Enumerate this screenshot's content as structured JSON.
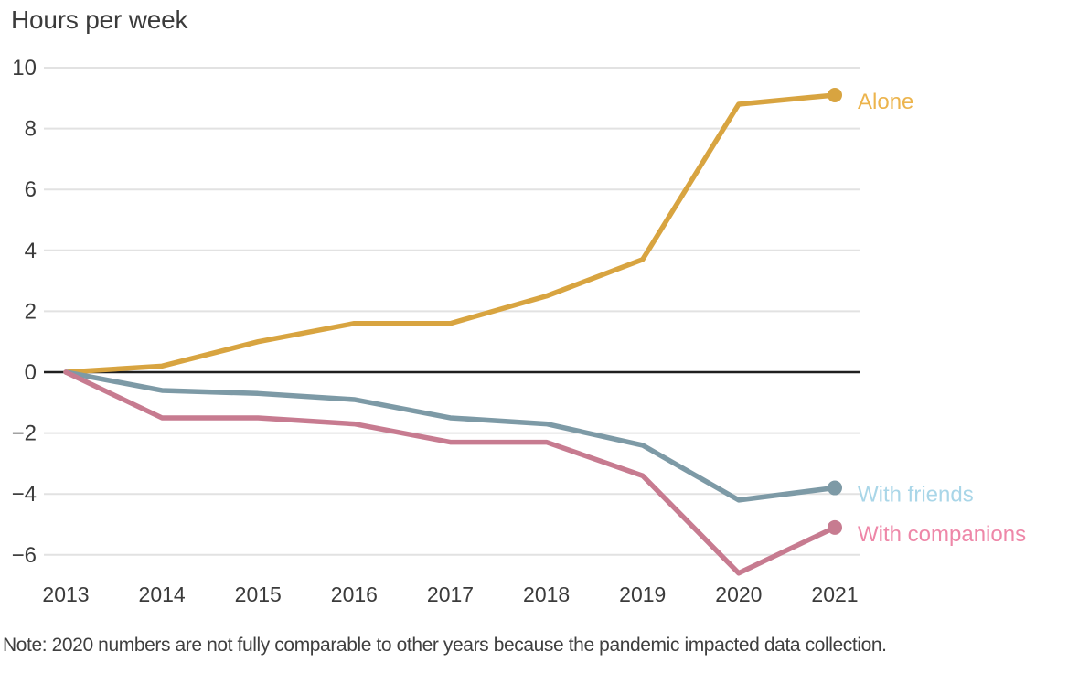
{
  "page": {
    "title": "Hours per week",
    "note": "Note: 2020 numbers are not fully comparable to other years because the pandemic impacted data collection."
  },
  "chart_data": {
    "type": "line",
    "title": "Hours per week",
    "ylabel": "Hours per week",
    "xlabel": "",
    "x": [
      "2013",
      "2014",
      "2015",
      "2016",
      "2017",
      "2018",
      "2019",
      "2020",
      "2021"
    ],
    "series": [
      {
        "name": "Alone",
        "values": [
          0,
          0.2,
          1.0,
          1.6,
          1.6,
          2.5,
          3.7,
          8.8,
          9.1
        ],
        "line_color": "#d8a440",
        "label_color": "#ecb44d"
      },
      {
        "name": "With friends",
        "values": [
          0,
          -0.6,
          -0.7,
          -0.9,
          -1.5,
          -1.7,
          -2.4,
          -4.2,
          -3.8
        ],
        "line_color": "#7d9aa6",
        "label_color": "#a9d6e8"
      },
      {
        "name": "With companions",
        "values": [
          0,
          -1.5,
          -1.5,
          -1.7,
          -2.3,
          -2.3,
          -3.4,
          -6.6,
          -5.1
        ],
        "line_color": "#c77b90",
        "label_color": "#ee87a8"
      }
    ],
    "y_ticks": [
      10,
      8,
      6,
      4,
      2,
      0,
      -2,
      -4,
      -6
    ],
    "ylim": [
      -6.9,
      10.3
    ],
    "grid": true,
    "zero_baseline": true,
    "legend_position": "end-of-line",
    "note": "Note: 2020 numbers are not fully comparable to other years because the pandemic impacted data collection."
  }
}
